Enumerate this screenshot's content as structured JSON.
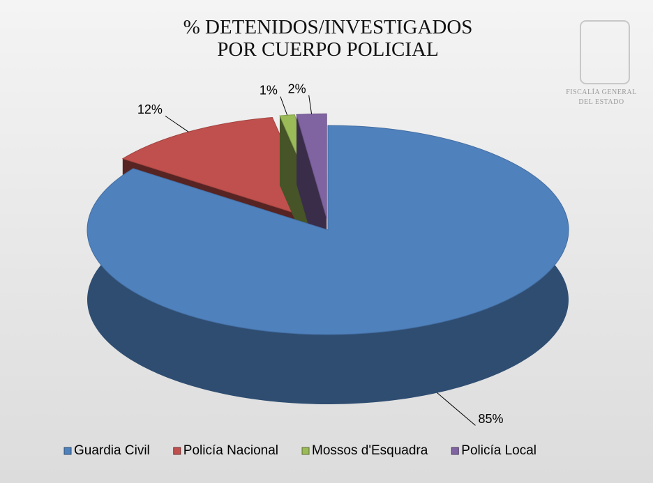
{
  "chart_data": {
    "type": "pie",
    "title": [
      "% DETENIDOS/INVESTIGADOS",
      "POR CUERPO POLICIAL"
    ],
    "categories": [
      "Guardia Civil",
      "Policía Nacional",
      "Mossos d'Esquadra",
      "Policía Local"
    ],
    "values": [
      85,
      12,
      1,
      2
    ],
    "value_labels": [
      "85%",
      "12%",
      "1%",
      "2%"
    ],
    "colors": [
      "#4f81bd",
      "#c0504d",
      "#9bbb59",
      "#8064a2"
    ],
    "legend": "bottom"
  },
  "logo": {
    "lines": [
      "FISCALÍA GENERAL",
      "DEL ESTADO"
    ]
  }
}
